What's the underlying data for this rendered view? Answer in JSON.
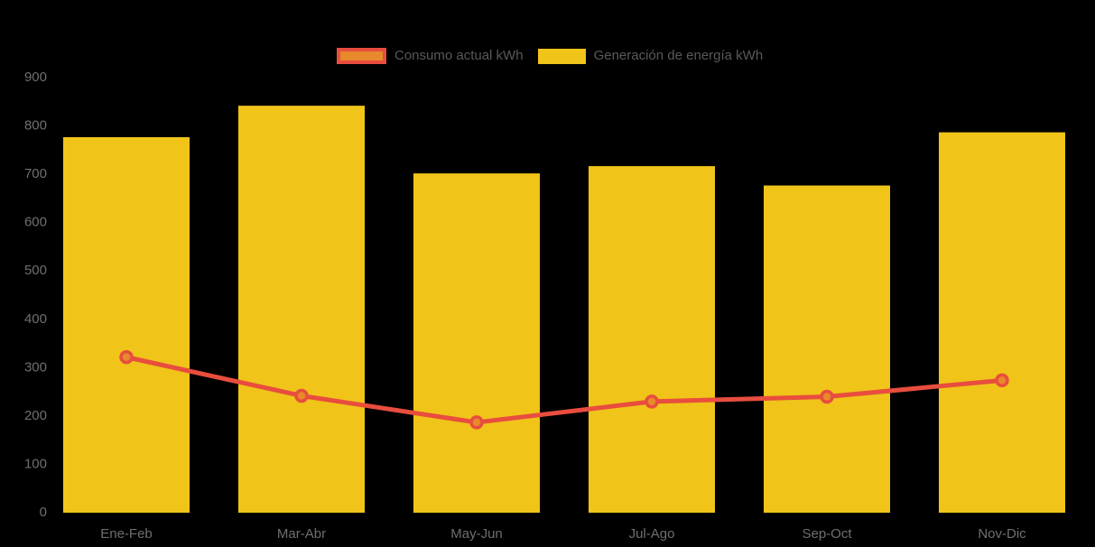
{
  "chart_data": {
    "type": "bar+line",
    "title": "",
    "categories": [
      "Ene-Feb",
      "Mar-Abr",
      "May-Jun",
      "Jul-Ago",
      "Sep-Oct",
      "Nov-Dic"
    ],
    "series": [
      {
        "name": "Consumo actual kWh",
        "type": "line",
        "color": "#e84d3e",
        "marker_fill": "#e8892b",
        "values": [
          320,
          240,
          185,
          228,
          238,
          272
        ]
      },
      {
        "name": "Generación de energía kWh",
        "type": "bar",
        "color": "#f0c419",
        "values": [
          775,
          840,
          700,
          715,
          675,
          785
        ]
      }
    ],
    "xlabel": "",
    "ylabel": "",
    "ylim": [
      0,
      900
    ],
    "ytick_step": 100,
    "grid": false,
    "legend_position": "top",
    "background": "#000000",
    "axis_text_color": "#6e6f71",
    "legend_text_color": "#58595b"
  }
}
